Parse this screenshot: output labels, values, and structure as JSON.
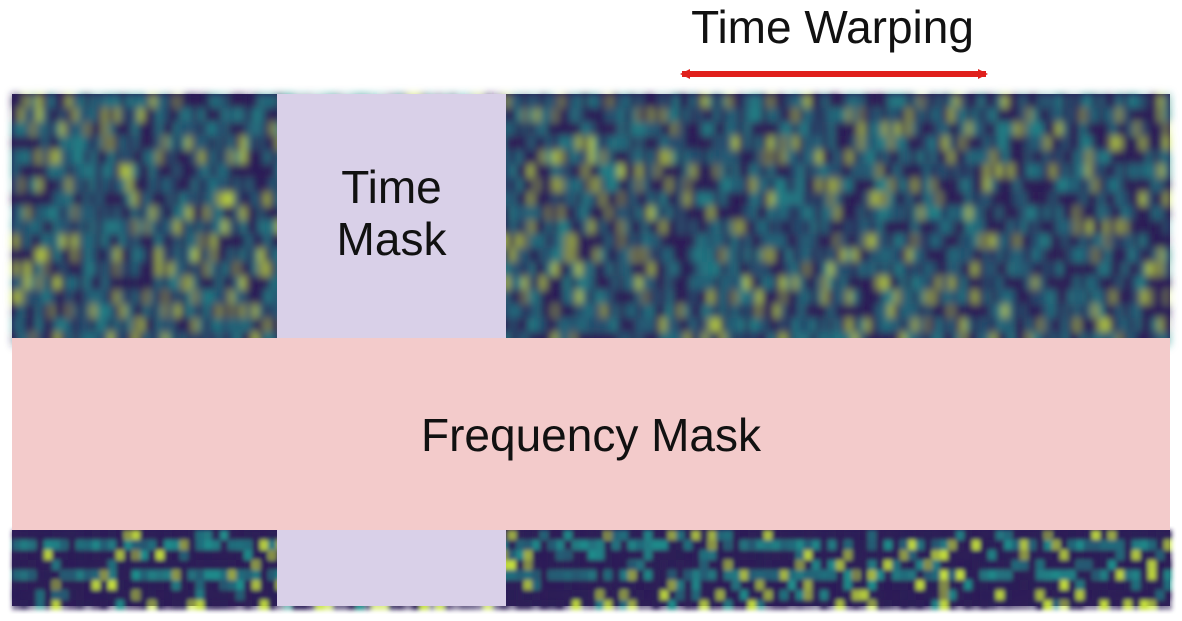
{
  "labels": {
    "time_warping": "Time Warping",
    "time_mask_line1": "Time",
    "time_mask_line2": "Mask",
    "frequency_mask": "Frequency Mask"
  },
  "colors": {
    "time_mask_fill": "#d9d0e8",
    "frequency_mask_fill": "#f3cbcb",
    "arrow": "#e0201c",
    "spectrogram_low": "#2c1d57",
    "spectrogram_mid": "#1f8f8c",
    "spectrogram_high": "#c7e23a"
  }
}
